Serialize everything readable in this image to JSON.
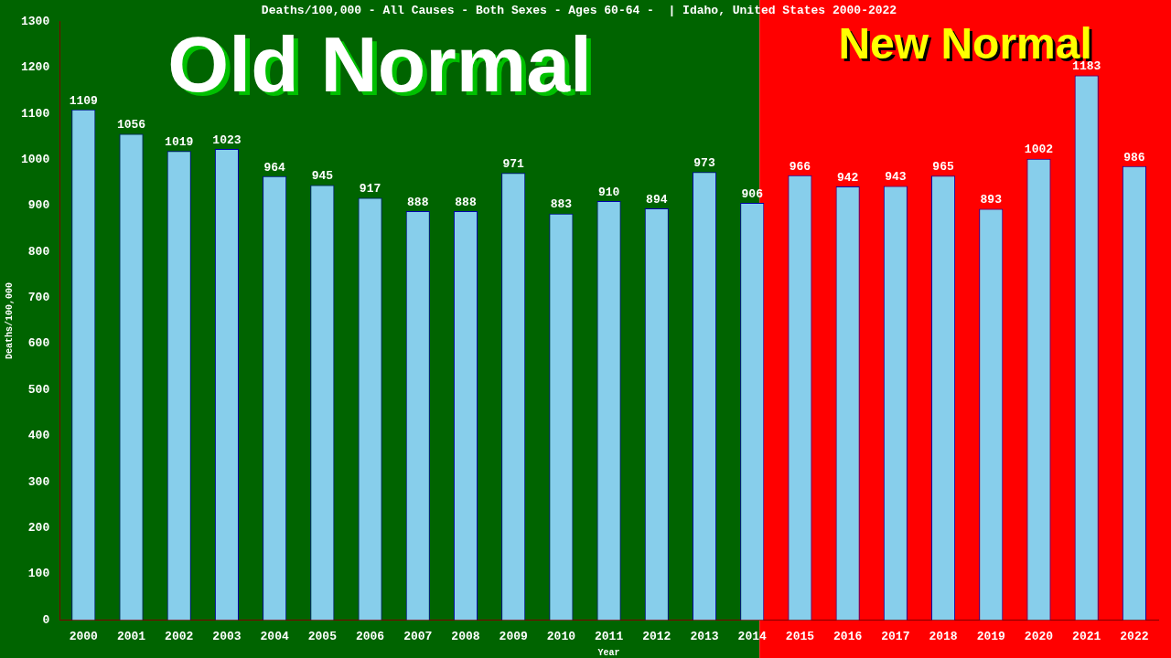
{
  "chart_data": {
    "type": "bar",
    "title": "Deaths/100,000 - All Causes - Both Sexes - Ages 60-64 -  | Idaho, United States 2000-2022",
    "xlabel": "Year",
    "ylabel": "Deaths/100,000",
    "categories": [
      "2000",
      "2001",
      "2002",
      "2003",
      "2004",
      "2005",
      "2006",
      "2007",
      "2008",
      "2009",
      "2010",
      "2011",
      "2012",
      "2013",
      "2014",
      "2015",
      "2016",
      "2017",
      "2018",
      "2019",
      "2020",
      "2021",
      "2022"
    ],
    "values": [
      1109,
      1056,
      1019,
      1023,
      964,
      945,
      917,
      888,
      888,
      971,
      883,
      910,
      894,
      973,
      906,
      966,
      942,
      943,
      965,
      893,
      1002,
      1183,
      986
    ],
    "color": "#87ceeb",
    "ylim": [
      0,
      1300
    ],
    "yticks": [
      0,
      100,
      200,
      300,
      400,
      500,
      600,
      700,
      800,
      900,
      1000,
      1100,
      1200,
      1300
    ],
    "grid": false,
    "legend": false,
    "data_labels": true,
    "bands": [
      {
        "axis": "x",
        "from": "2000",
        "to": "2014",
        "label": "Old Normal",
        "color": "#006400"
      },
      {
        "axis": "x",
        "from": "2014",
        "to": "2022",
        "label": "New Normal",
        "color": "#ff0000"
      }
    ]
  }
}
